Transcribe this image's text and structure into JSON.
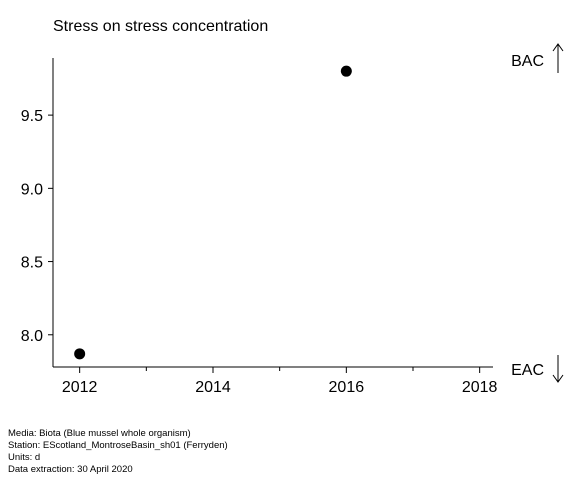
{
  "chart_data": {
    "type": "scatter",
    "title": "Stress on stress concentration",
    "xlabel": "",
    "ylabel": "",
    "xlim": [
      2011.6,
      2018.2
    ],
    "ylim": [
      7.78,
      9.89
    ],
    "x_ticks": [
      2012,
      2013,
      2014,
      2015,
      2016,
      2017,
      2018
    ],
    "x_tick_labels": [
      "2012",
      "",
      "2014",
      "",
      "2016",
      "",
      "2018"
    ],
    "y_ticks": [
      8.0,
      8.5,
      9.0,
      9.5
    ],
    "y_tick_labels": [
      "8.0",
      "8.5",
      "9.0",
      "9.5"
    ],
    "points": [
      {
        "x": 2012,
        "y": 7.87
      },
      {
        "x": 2016,
        "y": 9.8
      }
    ],
    "reference_labels": {
      "upper": "BAC",
      "lower": "EAC"
    },
    "grid": false,
    "marker_color": "#000000"
  },
  "footer": {
    "media": "Media: Biota (Blue mussel whole organism)",
    "station": "Station: EScotland_MontroseBasin_sh01 (Ferryden)",
    "units": "Units:  d",
    "extraction": "Data extraction: 30 April 2020"
  }
}
